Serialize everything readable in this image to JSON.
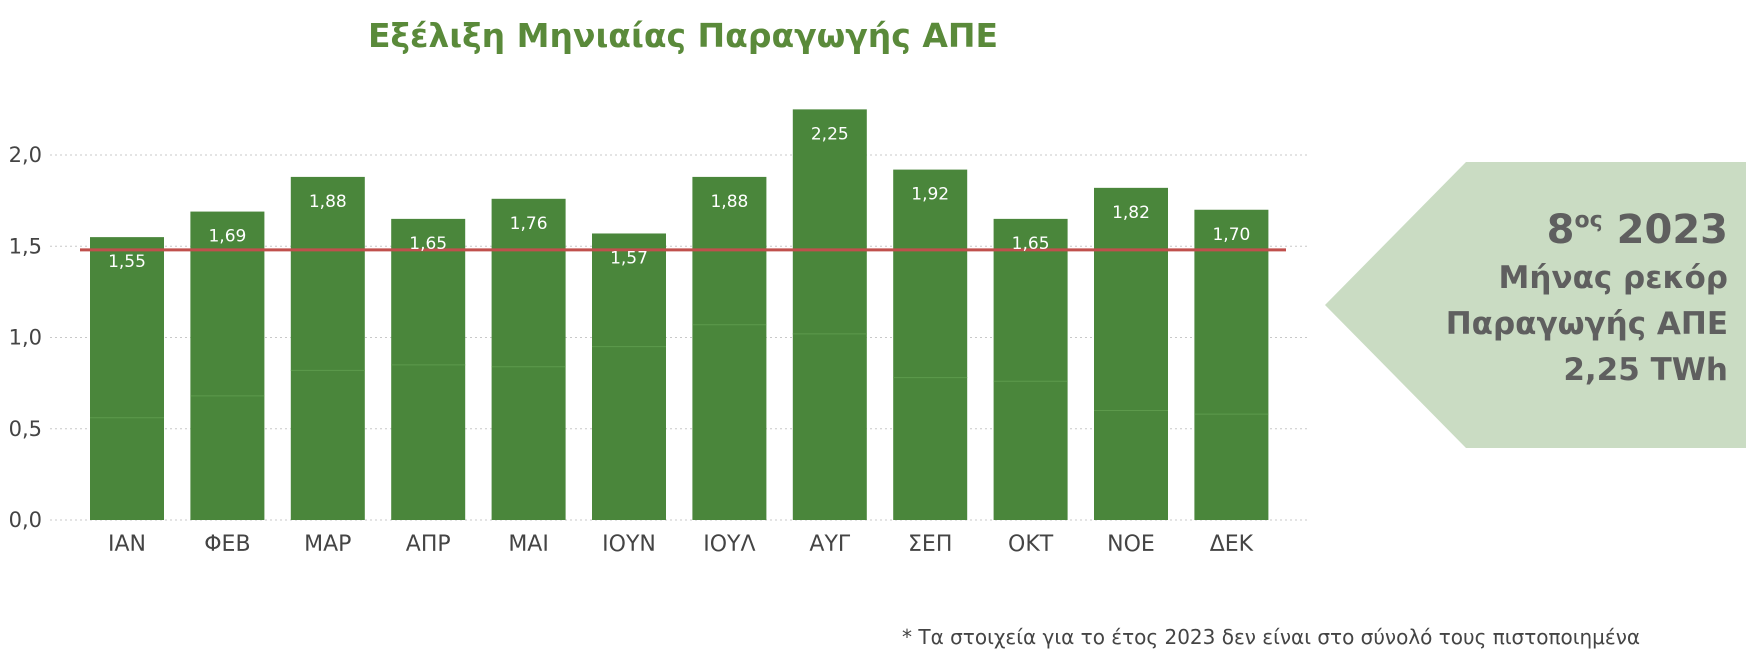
{
  "chart_data": {
    "type": "bar",
    "title": "Εξέλιξη Μηνιαίας Παραγωγής ΑΠΕ",
    "categories": [
      "ΙΑΝ",
      "ΦΕΒ",
      "ΜΑΡ",
      "ΑΠΡ",
      "ΜΑΙ",
      "ΙΟΥΝ",
      "ΙΟΥΛ",
      "ΑΥΓ",
      "ΣΕΠ",
      "ΟΚΤ",
      "ΝΟΕ",
      "ΔΕΚ"
    ],
    "values": [
      1.55,
      1.69,
      1.88,
      1.65,
      1.76,
      1.57,
      1.88,
      2.25,
      1.92,
      1.65,
      1.82,
      1.7
    ],
    "data_labels": [
      "1,55",
      "1,69",
      "1,88",
      "1,65",
      "1,76",
      "1,57",
      "1,88",
      "2,25",
      "1,92",
      "1,65",
      "1,82",
      "1,70"
    ],
    "lower_segments": [
      0.56,
      0.68,
      0.82,
      0.85,
      0.84,
      0.95,
      1.07,
      1.02,
      0.78,
      0.76,
      0.6,
      0.58
    ],
    "y_ticks": [
      0.0,
      0.5,
      1.0,
      1.5,
      2.0
    ],
    "y_tick_labels": [
      "0,0",
      "0,5",
      "1,0",
      "1,5",
      "2,0"
    ],
    "ylim": [
      0,
      2.3
    ],
    "reference_line": 1.48,
    "grid": true,
    "xlabel": "",
    "ylabel": ""
  },
  "colors": {
    "bar": "#4a863b",
    "bar_divider": "#5d9a4c",
    "title": "#5a8a3a",
    "reference_line": "#c0504d",
    "callout_fill": "#cadcc3",
    "callout_text": "#5f5f5f"
  },
  "callout": {
    "rank_number": "8",
    "rank_suffix": "ος",
    "year": "2023",
    "line1": "Μήνας ρεκόρ",
    "line2": "Παραγωγής ΑΠΕ",
    "line3": "2,25 TWh"
  },
  "footnote": "*  Τα στοιχεία για το έτος 2023 δεν είναι στο σύνολό τους πιστοποιημένα"
}
